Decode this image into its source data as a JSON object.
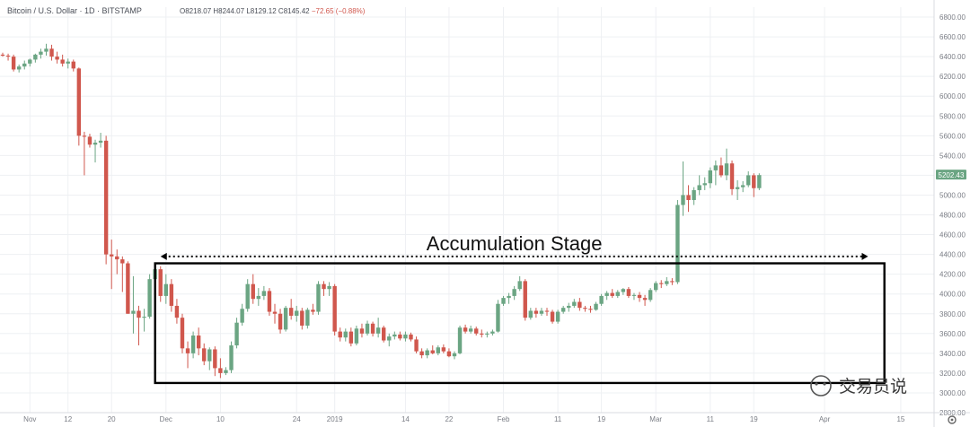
{
  "header": {
    "symbol": "Bitcoin / U.S. Dollar",
    "interval": "1D",
    "exchange": "BITSTAMP",
    "open": "O8218.07",
    "high": "H8244.07",
    "low": "L8129.12",
    "close": "C8145.42",
    "change": "−72.65 (−0.88%)"
  },
  "price_badge": "5202.43",
  "annotation": "Accumulation Stage",
  "watermark": "交易员说",
  "colors": {
    "up": "#6ba583",
    "down": "#d0574d",
    "grid": "#eef0f3",
    "badge": "#6ba583",
    "box": "#000000"
  },
  "chart_data": {
    "type": "candlestick",
    "title": "",
    "xlabel": "",
    "ylabel": "",
    "ylim": [
      2800,
      6900
    ],
    "y_ticks": [
      "6800.00",
      "6600.00",
      "6400.00",
      "6200.00",
      "6000.00",
      "5800.00",
      "5600.00",
      "5400.00",
      "5200.00",
      "5000.00",
      "4800.00",
      "4600.00",
      "4400.00",
      "4200.00",
      "4000.00",
      "3800.00",
      "3600.00",
      "3400.00",
      "3200.00",
      "3000.00",
      "2800.00"
    ],
    "x_ticks": [
      {
        "label": "Nov",
        "day": 5
      },
      {
        "label": "12",
        "day": 12
      },
      {
        "label": "20",
        "day": 20
      },
      {
        "label": "Dec",
        "day": 30
      },
      {
        "label": "10",
        "day": 40
      },
      {
        "label": "24",
        "day": 54
      },
      {
        "label": "2019",
        "day": 61
      },
      {
        "label": "14",
        "day": 74
      },
      {
        "label": "22",
        "day": 82
      },
      {
        "label": "Feb",
        "day": 92
      },
      {
        "label": "11",
        "day": 102
      },
      {
        "label": "19",
        "day": 110
      },
      {
        "label": "Mar",
        "day": 120
      },
      {
        "label": "11",
        "day": 130
      },
      {
        "label": "19",
        "day": 138
      },
      {
        "label": "Apr",
        "day": 151
      },
      {
        "label": "15",
        "day": 165
      }
    ],
    "ohlc": [
      [
        6420,
        6440,
        6400,
        6410
      ],
      [
        6410,
        6430,
        6360,
        6400
      ],
      [
        6400,
        6420,
        6250,
        6270
      ],
      [
        6270,
        6320,
        6240,
        6300
      ],
      [
        6300,
        6360,
        6270,
        6330
      ],
      [
        6330,
        6380,
        6300,
        6370
      ],
      [
        6370,
        6430,
        6340,
        6420
      ],
      [
        6420,
        6480,
        6380,
        6450
      ],
      [
        6450,
        6530,
        6410,
        6480
      ],
      [
        6480,
        6520,
        6360,
        6400
      ],
      [
        6400,
        6450,
        6330,
        6370
      ],
      [
        6370,
        6420,
        6300,
        6330
      ],
      [
        6330,
        6380,
        6280,
        6350
      ],
      [
        6350,
        6370,
        6250,
        6280
      ],
      [
        6280,
        6290,
        5500,
        5600
      ],
      [
        5600,
        5640,
        5200,
        5590
      ],
      [
        5590,
        5620,
        5480,
        5510
      ],
      [
        5510,
        5560,
        5330,
        5530
      ],
      [
        5530,
        5630,
        5480,
        5550
      ],
      [
        5550,
        5600,
        4300,
        4400
      ],
      [
        4400,
        4550,
        4050,
        4380
      ],
      [
        4380,
        4450,
        4200,
        4350
      ],
      [
        4350,
        4380,
        4020,
        4310
      ],
      [
        4310,
        4330,
        3800,
        3800
      ],
      [
        3800,
        4180,
        3600,
        3830
      ],
      [
        3830,
        3880,
        3480,
        3760
      ],
      [
        3760,
        3850,
        3620,
        3770
      ],
      [
        3770,
        4200,
        3750,
        4150
      ],
      [
        4150,
        4300,
        4050,
        4250
      ],
      [
        4250,
        4280,
        3920,
        3980
      ],
      [
        3980,
        4200,
        3900,
        4100
      ],
      [
        4100,
        4150,
        3820,
        3880
      ],
      [
        3880,
        3950,
        3700,
        3760
      ],
      [
        3760,
        3800,
        3400,
        3450
      ],
      [
        3450,
        3520,
        3250,
        3400
      ],
      [
        3400,
        3620,
        3350,
        3580
      ],
      [
        3580,
        3660,
        3380,
        3450
      ],
      [
        3450,
        3500,
        3280,
        3320
      ],
      [
        3320,
        3460,
        3230,
        3440
      ],
      [
        3440,
        3470,
        3170,
        3250
      ],
      [
        3250,
        3350,
        3150,
        3200
      ],
      [
        3200,
        3260,
        3180,
        3230
      ],
      [
        3230,
        3520,
        3200,
        3480
      ],
      [
        3480,
        3760,
        3450,
        3710
      ],
      [
        3710,
        3900,
        3680,
        3850
      ],
      [
        3850,
        4150,
        3820,
        4100
      ],
      [
        4100,
        4200,
        3900,
        3950
      ],
      [
        3950,
        4060,
        3880,
        3980
      ],
      [
        3980,
        4080,
        3940,
        4030
      ],
      [
        4030,
        4060,
        3780,
        3820
      ],
      [
        3820,
        3900,
        3700,
        3800
      ],
      [
        3800,
        3850,
        3600,
        3640
      ],
      [
        3640,
        3880,
        3620,
        3860
      ],
      [
        3860,
        3950,
        3740,
        3780
      ],
      [
        3780,
        3880,
        3720,
        3830
      ],
      [
        3830,
        3860,
        3640,
        3680
      ],
      [
        3680,
        3860,
        3650,
        3840
      ],
      [
        3840,
        3900,
        3790,
        3820
      ],
      [
        3820,
        4130,
        3790,
        4100
      ],
      [
        4100,
        4130,
        3980,
        4050
      ],
      [
        4050,
        4120,
        3980,
        4080
      ],
      [
        4080,
        4100,
        3580,
        3620
      ],
      [
        3620,
        3660,
        3520,
        3560
      ],
      [
        3560,
        3650,
        3520,
        3620
      ],
      [
        3620,
        3660,
        3470,
        3500
      ],
      [
        3500,
        3680,
        3480,
        3650
      ],
      [
        3650,
        3700,
        3560,
        3600
      ],
      [
        3600,
        3730,
        3580,
        3700
      ],
      [
        3700,
        3720,
        3570,
        3600
      ],
      [
        3600,
        3760,
        3560,
        3660
      ],
      [
        3660,
        3680,
        3510,
        3530
      ],
      [
        3530,
        3600,
        3470,
        3570
      ],
      [
        3570,
        3620,
        3540,
        3590
      ],
      [
        3590,
        3620,
        3530,
        3550
      ],
      [
        3550,
        3620,
        3520,
        3590
      ],
      [
        3590,
        3610,
        3520,
        3540
      ],
      [
        3540,
        3570,
        3400,
        3420
      ],
      [
        3420,
        3450,
        3350,
        3380
      ],
      [
        3380,
        3450,
        3350,
        3430
      ],
      [
        3430,
        3480,
        3390,
        3400
      ],
      [
        3400,
        3480,
        3380,
        3460
      ],
      [
        3460,
        3490,
        3400,
        3420
      ],
      [
        3420,
        3450,
        3360,
        3370
      ],
      [
        3370,
        3420,
        3340,
        3400
      ],
      [
        3400,
        3680,
        3390,
        3660
      ],
      [
        3660,
        3690,
        3600,
        3620
      ],
      [
        3620,
        3680,
        3600,
        3650
      ],
      [
        3650,
        3670,
        3580,
        3600
      ],
      [
        3600,
        3640,
        3560,
        3590
      ],
      [
        3590,
        3620,
        3560,
        3600
      ],
      [
        3600,
        3640,
        3580,
        3620
      ],
      [
        3620,
        3940,
        3610,
        3900
      ],
      [
        3900,
        3980,
        3880,
        3960
      ],
      [
        3960,
        4010,
        3900,
        3980
      ],
      [
        3980,
        4080,
        3940,
        4050
      ],
      [
        4050,
        4180,
        4030,
        4130
      ],
      [
        4130,
        4150,
        3730,
        3760
      ],
      [
        3760,
        3860,
        3740,
        3830
      ],
      [
        3830,
        3860,
        3760,
        3800
      ],
      [
        3800,
        3860,
        3780,
        3830
      ],
      [
        3830,
        3860,
        3780,
        3820
      ],
      [
        3820,
        3840,
        3700,
        3720
      ],
      [
        3720,
        3840,
        3700,
        3820
      ],
      [
        3820,
        3880,
        3800,
        3860
      ],
      [
        3860,
        3910,
        3820,
        3880
      ],
      [
        3880,
        3950,
        3860,
        3920
      ],
      [
        3920,
        3960,
        3830,
        3860
      ],
      [
        3860,
        3880,
        3820,
        3850
      ],
      [
        3850,
        3880,
        3810,
        3840
      ],
      [
        3840,
        3920,
        3830,
        3900
      ],
      [
        3900,
        4000,
        3880,
        3980
      ],
      [
        3980,
        4030,
        3940,
        4010
      ],
      [
        4010,
        4050,
        3960,
        3980
      ],
      [
        3980,
        4040,
        3960,
        4020
      ],
      [
        4020,
        4060,
        3990,
        4050
      ],
      [
        4050,
        4070,
        3960,
        3980
      ],
      [
        3980,
        4010,
        3940,
        3990
      ],
      [
        3990,
        4020,
        3920,
        3960
      ],
      [
        3960,
        3990,
        3880,
        3940
      ],
      [
        3940,
        4060,
        3920,
        4040
      ],
      [
        4040,
        4130,
        4020,
        4110
      ],
      [
        4110,
        4140,
        4060,
        4100
      ],
      [
        4100,
        4170,
        4080,
        4130
      ],
      [
        4130,
        4160,
        4090,
        4120
      ],
      [
        4120,
        4950,
        4100,
        4900
      ],
      [
        4900,
        5340,
        4790,
        5000
      ],
      [
        5000,
        5100,
        4830,
        4950
      ],
      [
        4950,
        5080,
        4900,
        5050
      ],
      [
        5050,
        5200,
        5000,
        5100
      ],
      [
        5100,
        5180,
        5050,
        5120
      ],
      [
        5120,
        5280,
        5070,
        5250
      ],
      [
        5250,
        5350,
        5100,
        5300
      ],
      [
        5300,
        5380,
        5180,
        5200
      ],
      [
        5200,
        5470,
        5150,
        5320
      ],
      [
        5320,
        5350,
        5000,
        5060
      ],
      [
        5060,
        5150,
        4950,
        5080
      ],
      [
        5080,
        5140,
        5030,
        5100
      ],
      [
        5100,
        5240,
        5080,
        5200
      ],
      [
        5200,
        5220,
        4980,
        5070
      ],
      [
        5070,
        5220,
        5050,
        5202
      ]
    ],
    "annotations": [
      {
        "text": "Accumulation Stage",
        "type": "range-arrow",
        "from_day": 29,
        "to_day": 159,
        "y": 4380
      },
      {
        "type": "box",
        "from_day": 28,
        "to_day": 162,
        "y_top": 4310,
        "y_bottom": 3100
      }
    ],
    "last_price": 5202.43,
    "grid": true,
    "legend": "none"
  }
}
